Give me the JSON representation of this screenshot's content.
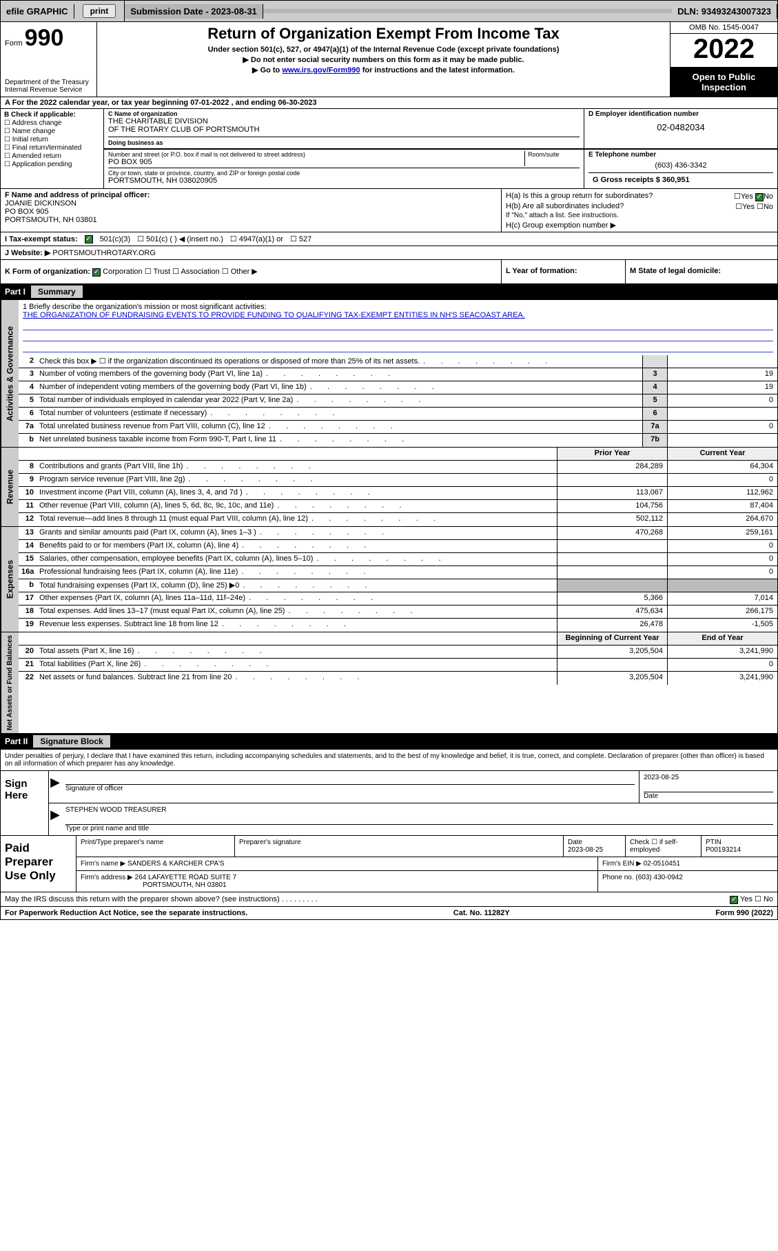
{
  "topbar": {
    "efile": "efile GRAPHIC",
    "print": "print",
    "sub_label": "Submission Date - ",
    "sub_date": "2023-08-31",
    "dln_label": "DLN: ",
    "dln": "93493243007323"
  },
  "header": {
    "form_word": "Form",
    "form_number": "990",
    "dept": "Department of the Treasury\nInternal Revenue Service",
    "title": "Return of Organization Exempt From Income Tax",
    "sub1": "Under section 501(c), 527, or 4947(a)(1) of the Internal Revenue Code (except private foundations)",
    "sub2": "▶ Do not enter social security numbers on this form as it may be made public.",
    "sub3_pre": "▶ Go to ",
    "sub3_link": "www.irs.gov/Form990",
    "sub3_post": " for instructions and the latest information.",
    "omb": "OMB No. 1545-0047",
    "year": "2022",
    "open": "Open to Public Inspection"
  },
  "row_a": "A For the 2022 calendar year, or tax year beginning 07-01-2022   , and ending 06-30-2023",
  "section_b": {
    "label": "B Check if applicable:",
    "opts": [
      "Address change",
      "Name change",
      "Initial return",
      "Final return/terminated",
      "Amended return",
      "Application pending"
    ]
  },
  "section_c": {
    "name_lbl": "C Name of organization",
    "name": "THE CHARITABLE DIVISION\nOF THE ROTARY CLUB OF PORTSMOUTH",
    "dba_lbl": "Doing business as",
    "addr_lbl": "Number and street (or P.O. box if mail is not delivered to street address)",
    "room_lbl": "Room/suite",
    "addr": "PO BOX 905",
    "city_lbl": "City or town, state or province, country, and ZIP or foreign postal code",
    "city": "PORTSMOUTH, NH  038020905"
  },
  "section_d": {
    "lbl": "D Employer identification number",
    "val": "02-0482034"
  },
  "section_e": {
    "lbl": "E Telephone number",
    "val": "(603) 436-3342"
  },
  "section_g": {
    "lbl": "G Gross receipts $ ",
    "val": "360,951"
  },
  "section_f": {
    "lbl": "F Name and address of principal officer:",
    "name": "JOANIE DICKINSON",
    "addr1": "PO BOX 905",
    "addr2": "PORTSMOUTH, NH  03801"
  },
  "section_h": {
    "ha": "H(a)  Is this a group return for subordinates?",
    "ha_yes": "Yes",
    "ha_no": "No",
    "hb": "H(b)  Are all subordinates included?",
    "hb_note": "If \"No,\" attach a list. See instructions.",
    "hc": "H(c)  Group exemption number ▶"
  },
  "row_i": {
    "lbl": "I   Tax-exempt status:",
    "opts": [
      "501(c)(3)",
      "501(c) (   ) ◀ (insert no.)",
      "4947(a)(1) or",
      "527"
    ]
  },
  "row_j": {
    "lbl": "J   Website: ▶",
    "val": "PORTSMOUTHROTARY.ORG"
  },
  "row_k": {
    "lbl": "K Form of organization:",
    "opts": [
      "Corporation",
      "Trust",
      "Association",
      "Other ▶"
    ]
  },
  "row_l": "L Year of formation:",
  "row_m": "M State of legal domicile:",
  "part1": {
    "num": "Part I",
    "title": "Summary"
  },
  "mission": {
    "q": "1   Briefly describe the organization's mission or most significant activities:",
    "a": "THE ORGANIZATION OF FUNDRAISING EVENTS TO PROVIDE FUNDING TO QUALIFYING TAX-EXEMPT ENTITIES IN NH'S SEACOAST AREA."
  },
  "gov_rows": [
    {
      "n": "2",
      "d": "Check this box ▶ ☐  if the organization discontinued its operations or disposed of more than 25% of its net assets.",
      "box": "",
      "v": ""
    },
    {
      "n": "3",
      "d": "Number of voting members of the governing body (Part VI, line 1a)",
      "box": "3",
      "v": "19"
    },
    {
      "n": "4",
      "d": "Number of independent voting members of the governing body (Part VI, line 1b)",
      "box": "4",
      "v": "19"
    },
    {
      "n": "5",
      "d": "Total number of individuals employed in calendar year 2022 (Part V, line 2a)",
      "box": "5",
      "v": "0"
    },
    {
      "n": "6",
      "d": "Total number of volunteers (estimate if necessary)",
      "box": "6",
      "v": ""
    },
    {
      "n": "7a",
      "d": "Total unrelated business revenue from Part VIII, column (C), line 12",
      "box": "7a",
      "v": "0"
    },
    {
      "n": "b",
      "d": "Net unrelated business taxable income from Form 990-T, Part I, line 11",
      "box": "7b",
      "v": ""
    }
  ],
  "rev_head": {
    "prior": "Prior Year",
    "curr": "Current Year"
  },
  "rev_rows": [
    {
      "n": "8",
      "d": "Contributions and grants (Part VIII, line 1h)",
      "p": "284,289",
      "c": "64,304"
    },
    {
      "n": "9",
      "d": "Program service revenue (Part VIII, line 2g)",
      "p": "",
      "c": "0"
    },
    {
      "n": "10",
      "d": "Investment income (Part VIII, column (A), lines 3, 4, and 7d )",
      "p": "113,067",
      "c": "112,962"
    },
    {
      "n": "11",
      "d": "Other revenue (Part VIII, column (A), lines 5, 6d, 8c, 9c, 10c, and 11e)",
      "p": "104,756",
      "c": "87,404"
    },
    {
      "n": "12",
      "d": "Total revenue—add lines 8 through 11 (must equal Part VIII, column (A), line 12)",
      "p": "502,112",
      "c": "264,670"
    }
  ],
  "exp_rows": [
    {
      "n": "13",
      "d": "Grants and similar amounts paid (Part IX, column (A), lines 1–3 )",
      "p": "470,268",
      "c": "259,161"
    },
    {
      "n": "14",
      "d": "Benefits paid to or for members (Part IX, column (A), line 4)",
      "p": "",
      "c": "0"
    },
    {
      "n": "15",
      "d": "Salaries, other compensation, employee benefits (Part IX, column (A), lines 5–10)",
      "p": "",
      "c": "0"
    },
    {
      "n": "16a",
      "d": "Professional fundraising fees (Part IX, column (A), line 11e)",
      "p": "",
      "c": "0"
    },
    {
      "n": "b",
      "d": "Total fundraising expenses (Part IX, column (D), line 25) ▶0",
      "p": "shade",
      "c": "shade"
    },
    {
      "n": "17",
      "d": "Other expenses (Part IX, column (A), lines 11a–11d, 11f–24e)",
      "p": "5,366",
      "c": "7,014"
    },
    {
      "n": "18",
      "d": "Total expenses. Add lines 13–17 (must equal Part IX, column (A), line 25)",
      "p": "475,634",
      "c": "266,175"
    },
    {
      "n": "19",
      "d": "Revenue less expenses. Subtract line 18 from line 12",
      "p": "26,478",
      "c": "-1,505"
    }
  ],
  "net_head": {
    "b": "Beginning of Current Year",
    "e": "End of Year"
  },
  "net_rows": [
    {
      "n": "20",
      "d": "Total assets (Part X, line 16)",
      "p": "3,205,504",
      "c": "3,241,990"
    },
    {
      "n": "21",
      "d": "Total liabilities (Part X, line 26)",
      "p": "",
      "c": "0"
    },
    {
      "n": "22",
      "d": "Net assets or fund balances. Subtract line 21 from line 20",
      "p": "3,205,504",
      "c": "3,241,990"
    }
  ],
  "part2": {
    "num": "Part II",
    "title": "Signature Block"
  },
  "sig_decl": "Under penalties of perjury, I declare that I have examined this return, including accompanying schedules and statements, and to the best of my knowledge and belief, it is true, correct, and complete. Declaration of preparer (other than officer) is based on all information of which preparer has any knowledge.",
  "sign": {
    "here": "Sign Here",
    "sig_lbl": "Signature of officer",
    "date": "2023-08-25",
    "date_lbl": "Date",
    "name": "STEPHEN WOOD TREASURER",
    "name_lbl": "Type or print name and title"
  },
  "paid": {
    "title": "Paid Preparer Use Only",
    "h1": "Print/Type preparer's name",
    "h2": "Preparer's signature",
    "h3": "Date",
    "h3v": "2023-08-25",
    "h4": "Check ☐ if self-employed",
    "h5": "PTIN",
    "h5v": "P00193214",
    "firm_lbl": "Firm's name   ▶",
    "firm": "SANDERS & KARCHER CPA'S",
    "ein_lbl": "Firm's EIN ▶",
    "ein": "02-0510451",
    "addr_lbl": "Firm's address ▶",
    "addr1": "264 LAFAYETTE ROAD SUITE 7",
    "addr2": "PORTSMOUTH, NH  03801",
    "ph_lbl": "Phone no.",
    "ph": "(603) 430-0942"
  },
  "may_irs": "May the IRS discuss this return with the preparer shown above? (see instructions)",
  "may_yes": "Yes",
  "may_no": "No",
  "footer": {
    "l": "For Paperwork Reduction Act Notice, see the separate instructions.",
    "m": "Cat. No. 11282Y",
    "r": "Form 990 (2022)"
  },
  "side_tabs": {
    "gov": "Activities & Governance",
    "rev": "Revenue",
    "exp": "Expenses",
    "net": "Net Assets or Fund Balances"
  }
}
